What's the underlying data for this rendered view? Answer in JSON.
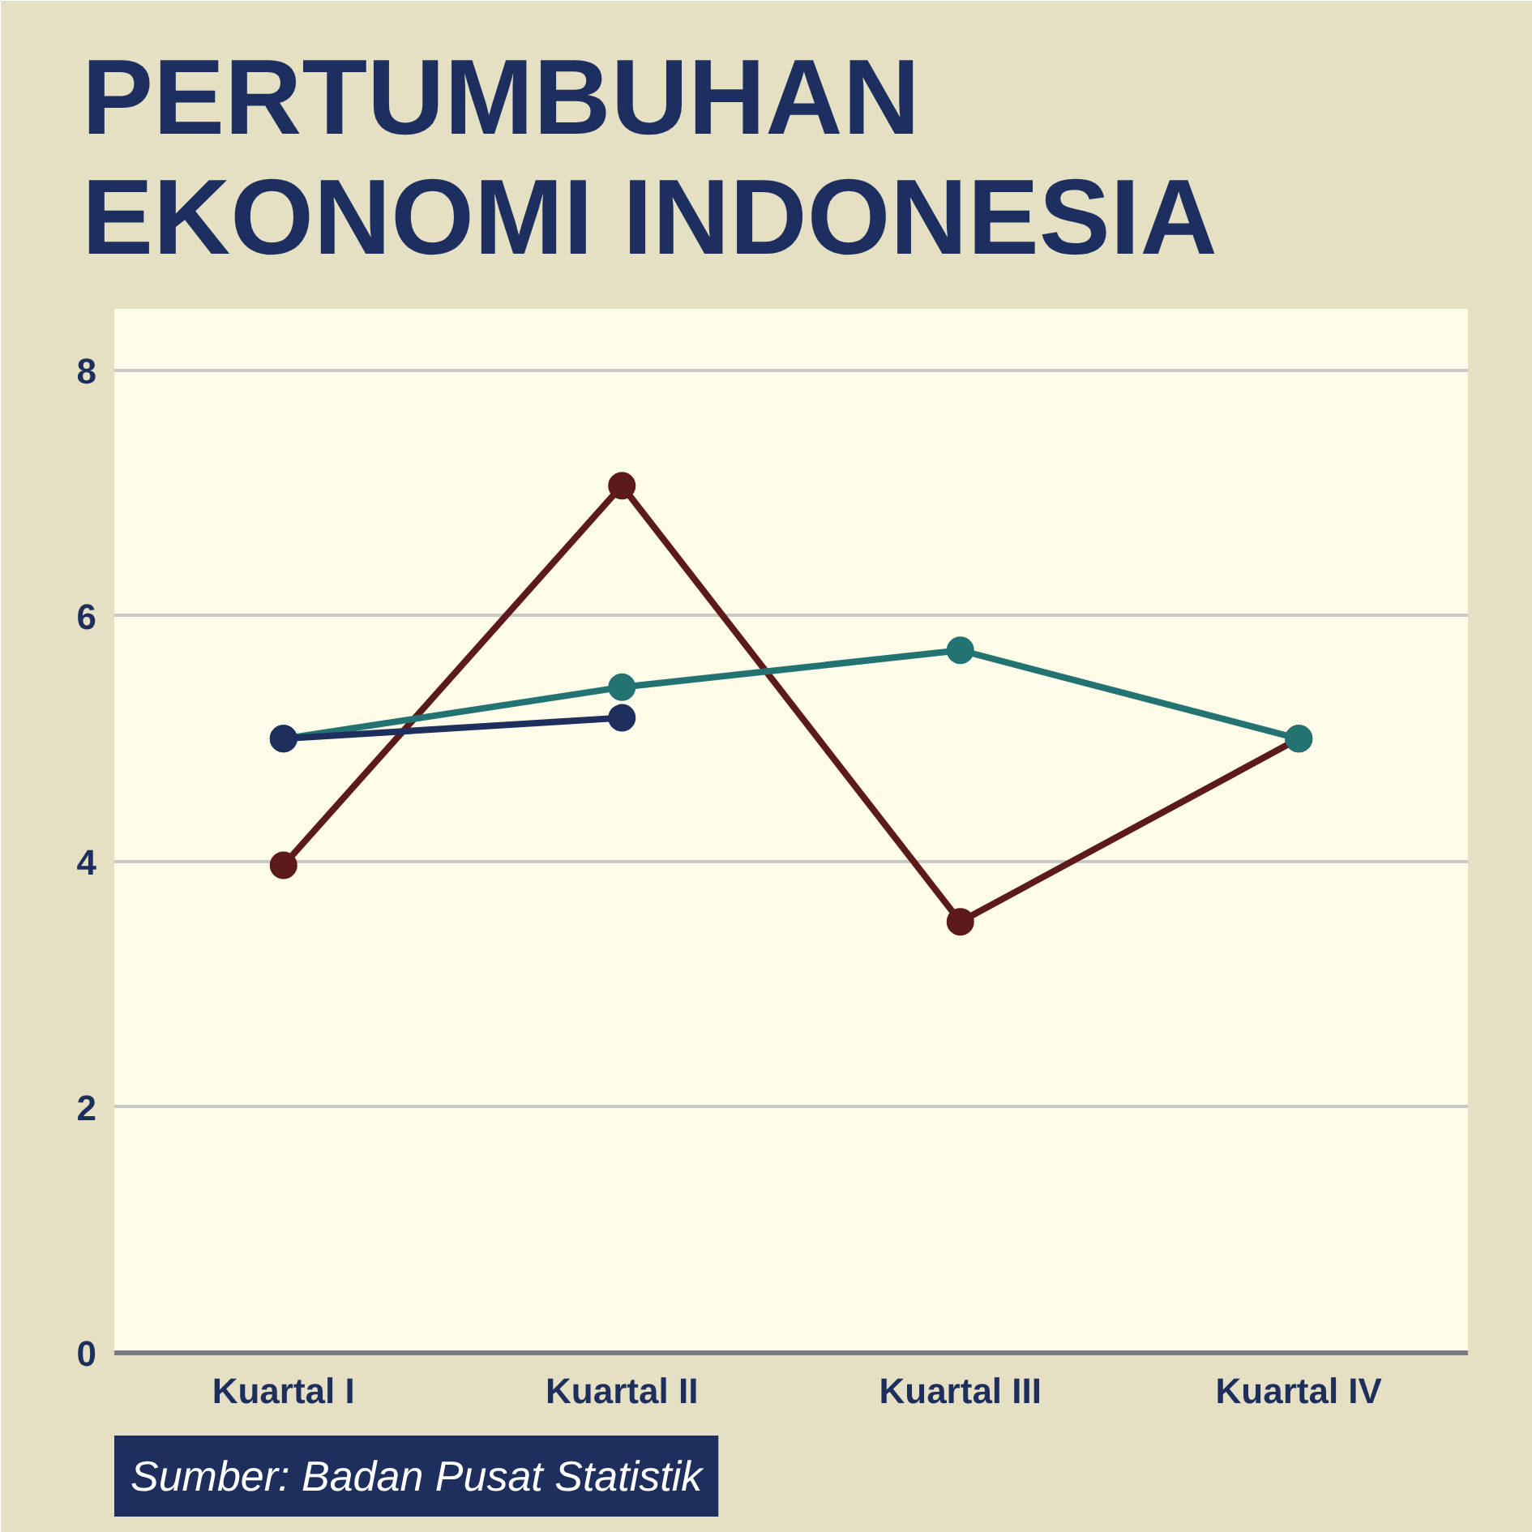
{
  "chart_data": {
    "type": "line",
    "title": "PERTUMBUHAN\nEKONOMI INDONESIA",
    "categories": [
      "Kuartal I",
      "Kuartal II",
      "Kuartal III",
      "Kuartal IV"
    ],
    "series": [
      {
        "color": "#5c1a1b",
        "values": [
          3.97,
          7.06,
          3.51,
          5.0
        ]
      },
      {
        "color": "#237373",
        "values": [
          5.0,
          5.42,
          5.72,
          5.0
        ]
      },
      {
        "color": "#1e2f5e",
        "values": [
          5.0,
          5.17,
          null,
          null
        ]
      }
    ],
    "ylim": [
      0,
      8.5
    ],
    "yticks": [
      0,
      2,
      4,
      6,
      8
    ],
    "grid": "y",
    "marker": "circle",
    "line_style": "solid",
    "annotations": [
      "Sumber: Badan Pusat Statistik"
    ]
  }
}
